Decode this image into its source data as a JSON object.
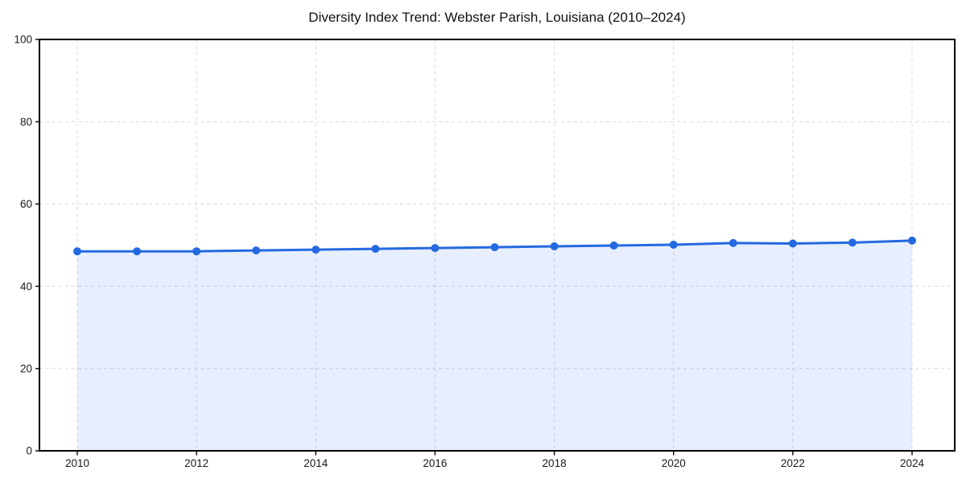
{
  "title": "Diversity Index Trend: Webster Parish, Louisiana (2010–2024)",
  "chart_data": {
    "type": "area",
    "title": "Diversity Index Trend: Webster Parish, Louisiana (2010–2024)",
    "x": [
      2010,
      2011,
      2012,
      2013,
      2014,
      2015,
      2016,
      2017,
      2018,
      2019,
      2020,
      2021,
      2022,
      2023,
      2024
    ],
    "series": [
      {
        "name": "Diversity Index",
        "values": [
          48.5,
          48.5,
          48.5,
          48.7,
          48.9,
          49.1,
          49.3,
          49.5,
          49.7,
          49.9,
          50.1,
          50.5,
          50.4,
          50.6,
          51.1
        ]
      }
    ],
    "xlabel": "",
    "ylabel": "",
    "ylim": [
      0,
      100
    ],
    "xticks": [
      2010,
      2012,
      2014,
      2016,
      2018,
      2020,
      2022,
      2024
    ],
    "yticks": [
      0,
      20,
      40,
      60,
      80,
      100
    ],
    "grid": true,
    "grid_style": "dashed",
    "legend": false,
    "marker": "circle",
    "colors": {
      "line": "#2569e1",
      "fill": "rgba(37, 99, 235, 0.11)",
      "grid": "#d9d9d9",
      "axis": "#000000",
      "tick_label": "#1a1a1a",
      "title": "#111111",
      "background": "#ffffff"
    }
  }
}
